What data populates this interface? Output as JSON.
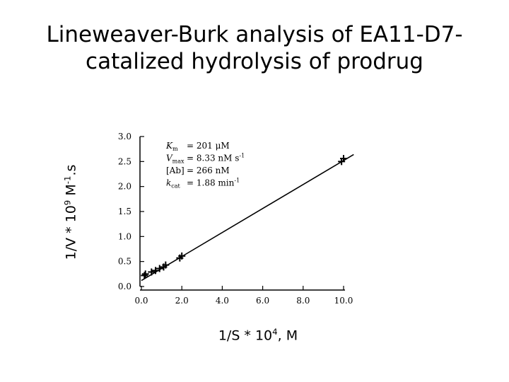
{
  "chart_data": {
    "type": "scatter",
    "title": [
      "Lineweaver-Burk analysis of EA11-D7-",
      "catalized hydrolysis of prodrug"
    ],
    "ylabel": {
      "pre": "1/V * 10",
      "exp1": "9",
      "mid": " M",
      "exp2": "-1",
      "post": ".s"
    },
    "xlabel": {
      "pre": "1/S * 10",
      "exp": "4",
      "post": ", M"
    },
    "xlim": [
      0,
      10
    ],
    "ylim": [
      0,
      3
    ],
    "xticks": [
      "0.0",
      "2.0",
      "4.0",
      "6.0",
      "8.0",
      "10.0"
    ],
    "yticks": [
      "0.0",
      "0.5",
      "1.0",
      "1.5",
      "2.0",
      "2.5",
      "3.0"
    ],
    "points": [
      {
        "x": 0.15,
        "y": 0.22
      },
      {
        "x": 0.2,
        "y": 0.25
      },
      {
        "x": 0.5,
        "y": 0.29
      },
      {
        "x": 0.7,
        "y": 0.32
      },
      {
        "x": 0.9,
        "y": 0.36
      },
      {
        "x": 1.1,
        "y": 0.39
      },
      {
        "x": 1.2,
        "y": 0.43
      },
      {
        "x": 1.9,
        "y": 0.57
      },
      {
        "x": 2.0,
        "y": 0.61
      },
      {
        "x": 9.9,
        "y": 2.5
      },
      {
        "x": 10.0,
        "y": 2.56
      }
    ],
    "fit_line": {
      "x": [
        0,
        10.5
      ],
      "y": [
        0.12,
        2.64
      ]
    },
    "annotations": [
      {
        "sym": "K",
        "sub": "m",
        "value": "=  201 μM"
      },
      {
        "sym": "V",
        "sub": "max",
        "value": "=  8.33 nM s",
        "sup": "-1"
      },
      {
        "sym": "[Ab]",
        "sub": "",
        "value": "=  266 nM"
      },
      {
        "sym": "k",
        "sub": "cat",
        "value": "=  1.88 min",
        "sup": "-1"
      }
    ]
  }
}
